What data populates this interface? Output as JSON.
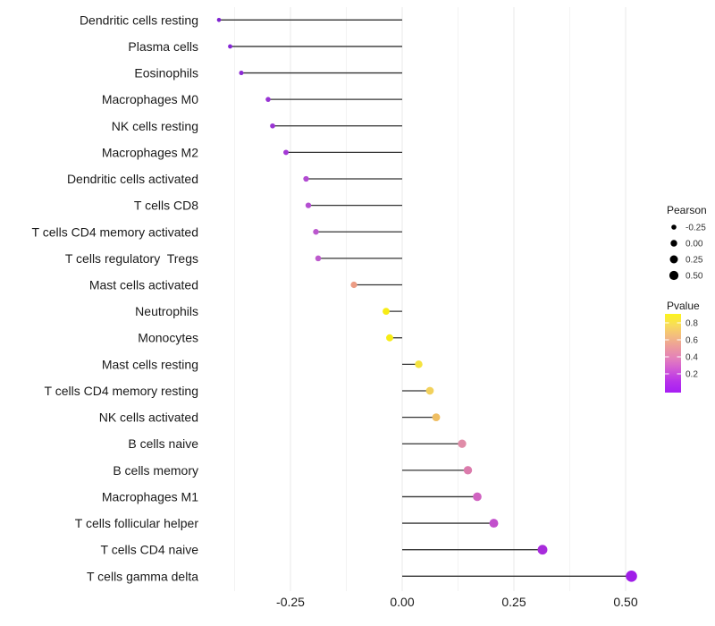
{
  "chart_data": {
    "type": "lollipop",
    "title": "",
    "xlabel": "",
    "ylabel": "",
    "x_tick_labels": [
      "-0.25",
      "0.00",
      "0.25",
      "0.50"
    ],
    "x_tick_values": [
      -0.25,
      0.0,
      0.25,
      0.5
    ],
    "xlim": [
      -0.425,
      0.525
    ],
    "baseline_x": 0.0,
    "grid": {
      "major_x": [
        -0.25,
        0.0,
        0.25,
        0.5
      ],
      "minor_x": [
        -0.375,
        -0.125,
        0.125,
        0.375
      ],
      "horizontal": "off"
    },
    "categories": [
      "Dendritic cells resting",
      "Plasma cells",
      "Eosinophils",
      "Macrophages M0",
      "NK cells resting",
      "Macrophages M2",
      "Dendritic cells activated",
      "T cells CD8",
      "T cells CD4 memory activated",
      "T cells regulatory  Tregs",
      "Mast cells activated",
      "Neutrophils",
      "Monocytes",
      "Mast cells resting",
      "T cells CD4 memory resting",
      "NK cells activated",
      "B cells naive",
      "B cells memory",
      "Macrophages M1",
      "T cells follicular helper",
      "T cells CD4 naive",
      "T cells gamma delta"
    ],
    "series": [
      {
        "name": "Pearson",
        "values": [
          -0.41,
          -0.385,
          -0.36,
          -0.3,
          -0.29,
          -0.26,
          -0.215,
          -0.21,
          -0.193,
          -0.188,
          -0.108,
          -0.036,
          -0.028,
          0.037,
          0.062,
          0.076,
          0.134,
          0.147,
          0.168,
          0.205,
          0.314,
          0.513
        ]
      }
    ],
    "point_colors": [
      "#7E22D0",
      "#8627D6",
      "#8C2BD4",
      "#9833D4",
      "#9A34D3",
      "#A438D6",
      "#B24BD2",
      "#B44ED1",
      "#BB57CE",
      "#BD5ACD",
      "#EC9C84",
      "#F7EC15",
      "#F7EC15",
      "#F5E33F",
      "#F2D15C",
      "#EFBE62",
      "#E08CA8",
      "#DB7BAC",
      "#D063C1",
      "#C24FCC",
      "#A82BDC",
      "#A01EE8"
    ],
    "legend_position": "right",
    "legends": {
      "size": {
        "title": "Pearson",
        "labels": [
          "-0.25",
          "0.00",
          "0.25",
          "0.50"
        ],
        "values": [
          -0.25,
          0.0,
          0.25,
          0.5
        ],
        "dot_color": "#000000"
      },
      "color": {
        "title": "Pvalue",
        "tick_labels": [
          "0.8",
          "0.6",
          "0.4",
          "0.2"
        ],
        "tick_values": [
          0.8,
          0.6,
          0.4,
          0.2
        ],
        "gradient_top_to_bottom": [
          "#FCF41D",
          "#F8DC5B",
          "#F3BB80",
          "#EC9A9E",
          "#E37FBC",
          "#D058D6",
          "#B832EA",
          "#A71EF4"
        ]
      }
    },
    "colors": {
      "stem": "#333333",
      "grid_major": "#E9E9E9",
      "grid_minor": "#F3F3F3",
      "axis_text": "#1A1A1A",
      "legend_text": "#333333",
      "background": "#FFFFFF"
    }
  }
}
